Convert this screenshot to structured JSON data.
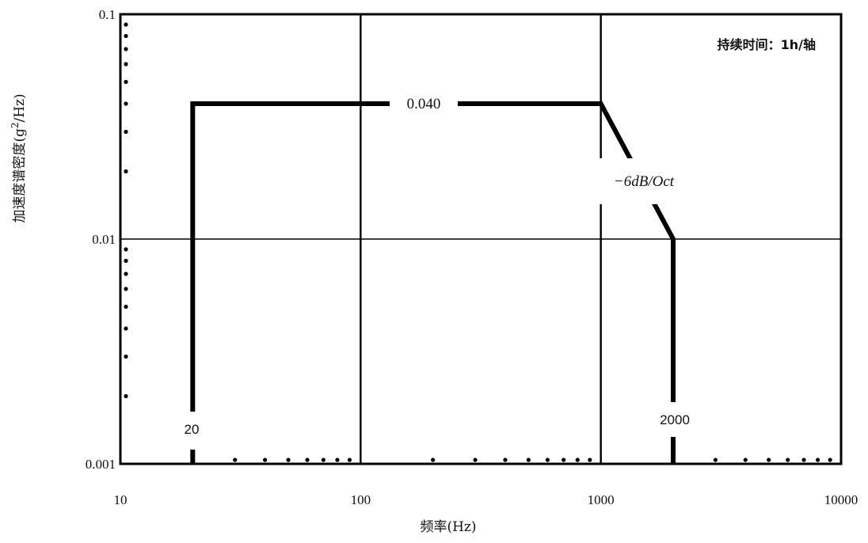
{
  "chart_data": {
    "type": "line",
    "xlabel": "频率(Hz)",
    "ylabel_prefix": "加速度谱密度(g",
    "ylabel_sup": "2",
    "ylabel_suffix": "/Hz)",
    "x_scale": "log",
    "y_scale": "log",
    "xlim": [
      10,
      10000
    ],
    "ylim": [
      0.001,
      0.1
    ],
    "x_ticks": [
      10,
      100,
      1000,
      10000
    ],
    "x_tick_labels": [
      "10",
      "100",
      "1000",
      "10000"
    ],
    "y_ticks": [
      0.001,
      0.01,
      0.1
    ],
    "y_tick_labels": [
      "0.001",
      "0.01",
      "0.1"
    ],
    "grid": true,
    "series": [
      {
        "x": [
          20,
          20,
          1000,
          2000,
          2000
        ],
        "y": [
          0.001,
          0.04,
          0.04,
          0.01,
          0.001
        ]
      }
    ],
    "annotations": {
      "level": "0.040",
      "slope": "−6dB/Oct",
      "f_low": "20",
      "f_high": "2000",
      "duration": "持续时间：1h/轴"
    }
  }
}
